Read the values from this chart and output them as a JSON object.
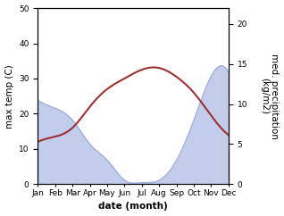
{
  "months": [
    "Jan",
    "Feb",
    "Mar",
    "Apr",
    "May",
    "Jun",
    "Jul",
    "Aug",
    "Sep",
    "Oct",
    "Nov",
    "Dec"
  ],
  "month_x": [
    0,
    1,
    2,
    3,
    4,
    5,
    6,
    7,
    8,
    9,
    10,
    11
  ],
  "temperature": [
    12.0,
    13.5,
    16.0,
    22.0,
    27.0,
    30.0,
    32.5,
    33.0,
    30.5,
    26.0,
    19.5,
    14.0
  ],
  "precipitation": [
    10.5,
    9.5,
    8.0,
    5.0,
    3.0,
    0.5,
    0.2,
    0.5,
    3.0,
    8.0,
    13.5,
    14.0
  ],
  "temp_color": "#a03030",
  "precip_fill_color": "#b8c4e8",
  "precip_edge_color": "#9aa8d8",
  "temp_ylim": [
    0,
    50
  ],
  "temp_yticks": [
    0,
    10,
    20,
    30,
    40,
    50
  ],
  "precip_ylim": [
    0,
    22
  ],
  "precip_yticks": [
    0,
    5,
    10,
    15,
    20
  ],
  "xlabel": "date (month)",
  "ylabel_left": "max temp (C)",
  "ylabel_right": "med. precipitation\n(kg/m2)",
  "label_fontsize": 7.5,
  "tick_fontsize": 6.5,
  "background_color": "#ffffff"
}
